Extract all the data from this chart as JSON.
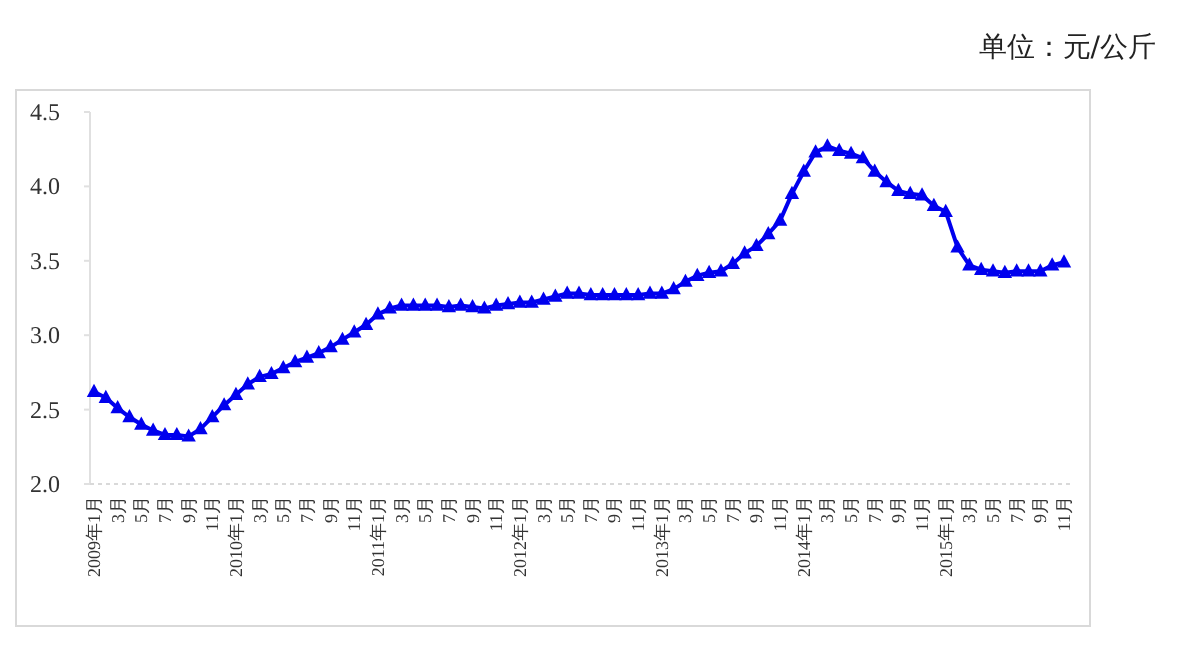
{
  "chart_data": {
    "type": "line",
    "annotations": [
      "单位：元/公斤"
    ],
    "categories": [
      "2009年1月",
      null,
      "3月",
      null,
      "5月",
      null,
      "7月",
      null,
      "9月",
      null,
      "11月",
      null,
      "2010年1月",
      null,
      "3月",
      null,
      "5月",
      null,
      "7月",
      null,
      "9月",
      null,
      "11月",
      null,
      "2011年1月",
      null,
      "3月",
      null,
      "5月",
      null,
      "7月",
      null,
      "9月",
      null,
      "11月",
      null,
      "2012年1月",
      null,
      "3月",
      null,
      "5月",
      null,
      "7月",
      null,
      "9月",
      null,
      "11月",
      null,
      "2013年1月",
      null,
      "3月",
      null,
      "5月",
      null,
      "7月",
      null,
      "9月",
      null,
      "11月",
      null,
      "2014年1月",
      null,
      "3月",
      null,
      "5月",
      null,
      "7月",
      null,
      "9月",
      null,
      "11月",
      null,
      "2015年1月",
      null,
      "3月",
      null,
      "5月",
      null,
      "7月",
      null,
      "9月",
      null,
      "11月"
    ],
    "values": [
      2.62,
      2.58,
      2.51,
      2.45,
      2.4,
      2.36,
      2.33,
      2.33,
      2.32,
      2.37,
      2.45,
      2.53,
      2.6,
      2.67,
      2.72,
      2.74,
      2.78,
      2.82,
      2.85,
      2.88,
      2.92,
      2.97,
      3.02,
      3.07,
      3.14,
      3.18,
      3.2,
      3.2,
      3.2,
      3.2,
      3.19,
      3.2,
      3.19,
      3.18,
      3.2,
      3.21,
      3.22,
      3.22,
      3.24,
      3.26,
      3.28,
      3.28,
      3.27,
      3.27,
      3.27,
      3.27,
      3.27,
      3.28,
      3.28,
      3.31,
      3.36,
      3.4,
      3.42,
      3.43,
      3.48,
      3.55,
      3.6,
      3.68,
      3.77,
      3.95,
      4.1,
      4.23,
      4.27,
      4.24,
      4.22,
      4.19,
      4.1,
      4.03,
      3.97,
      3.95,
      3.94,
      3.87,
      3.83,
      3.59,
      3.47,
      3.44,
      3.43,
      3.42,
      3.43,
      3.43,
      3.43,
      3.47,
      3.49
    ],
    "color": "#0000ee",
    "marker": "triangle",
    "ylim": [
      2.0,
      4.5
    ],
    "yticks": [
      {
        "value": 2,
        "label": "2.0"
      },
      2.5,
      {
        "value": 3,
        "label": "3.0"
      },
      3.5,
      {
        "value": 4,
        "label": "4.0"
      },
      4.5
    ]
  }
}
